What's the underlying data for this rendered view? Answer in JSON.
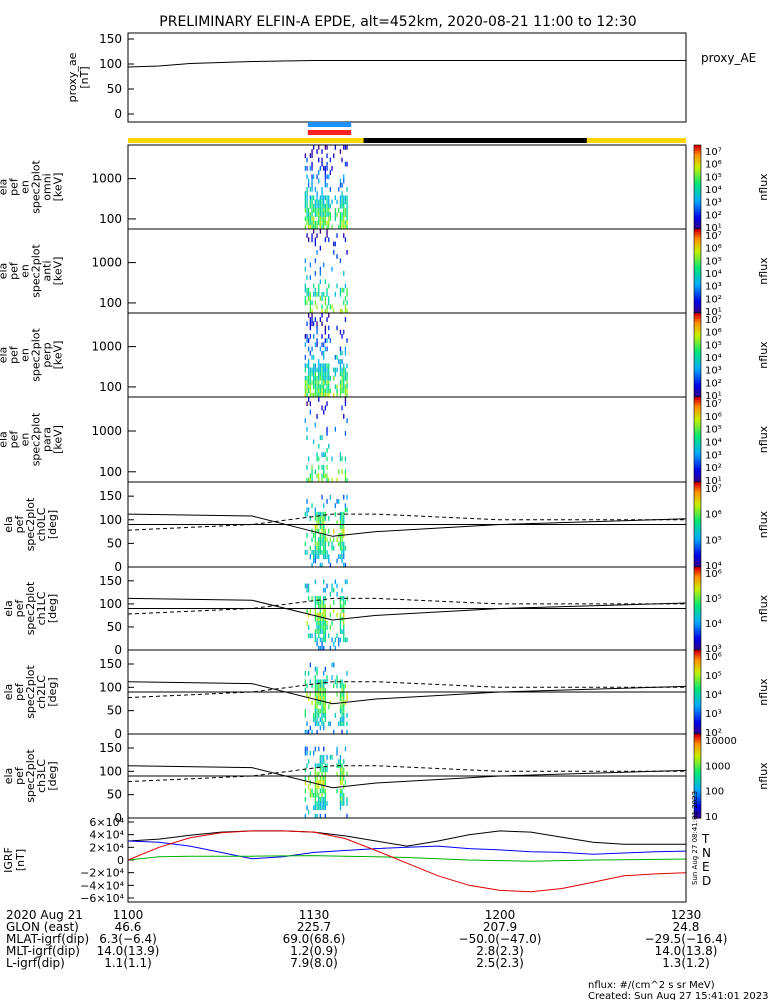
{
  "title": "PRELIMINARY ELFIN-A EPDE, alt=452km, 2020-08-21 11:00 to 12:30",
  "colors": {
    "sci_bar_blue": "#1e8fff",
    "sci_bar_red": "#ff2020",
    "sunlit_yellow": "#ffd700",
    "eclipse_black": "#000000",
    "grf_T": "#000000",
    "grf_N": "#0000ff",
    "grf_E": "#00b000",
    "grf_D": "#e00000"
  },
  "colorbar_ticks_energy": [
    "10⁷",
    "10⁶",
    "10⁵",
    "10⁴",
    "10³",
    "10²",
    "10¹"
  ],
  "chart_data": [
    {
      "type": "line",
      "name": "proxy_ae",
      "ylabel": [
        "proxy_ae",
        "[nT]"
      ],
      "legend": "proxy_AE",
      "ylim": [
        0,
        150
      ],
      "yticks": [
        "150",
        "100",
        "50",
        "0"
      ],
      "x": [
        0,
        5,
        10,
        15,
        20,
        25,
        30,
        35,
        40,
        45,
        50,
        55,
        60,
        65,
        70,
        75,
        80,
        85,
        90
      ],
      "values": [
        94,
        96,
        101,
        103,
        105,
        106,
        107,
        107,
        107,
        107,
        107,
        107,
        107,
        107,
        107,
        107,
        107,
        107,
        107
      ]
    },
    {
      "type": "heatmap",
      "name": "omni",
      "ylabel": [
        "ela",
        "pef",
        "en",
        "spec2plot",
        "omni",
        "[keV]"
      ],
      "yticks": [
        "1000",
        "100"
      ],
      "colorbar_label": "nflux",
      "colorbar_ticks": [
        "10⁷",
        "10⁶",
        "10⁵",
        "10⁴",
        "10³",
        "10²",
        "10¹"
      ]
    },
    {
      "type": "heatmap",
      "name": "anti",
      "ylabel": [
        "ela",
        "pef",
        "en",
        "spec2plot",
        "anti",
        "[keV]"
      ],
      "yticks": [
        "1000",
        "100"
      ],
      "colorbar_label": "nflux",
      "colorbar_ticks": [
        "10⁷",
        "10⁶",
        "10⁵",
        "10⁴",
        "10³",
        "10²",
        "10¹"
      ]
    },
    {
      "type": "heatmap",
      "name": "perp",
      "ylabel": [
        "ela",
        "pef",
        "en",
        "spec2plot",
        "perp",
        "[keV]"
      ],
      "yticks": [
        "1000",
        "100"
      ],
      "colorbar_label": "nflux",
      "colorbar_ticks": [
        "10⁷",
        "10⁶",
        "10⁵",
        "10⁴",
        "10³",
        "10²",
        "10¹"
      ]
    },
    {
      "type": "heatmap",
      "name": "para",
      "ylabel": [
        "ela",
        "pef",
        "en",
        "spec2plot",
        "para",
        "[keV]"
      ],
      "yticks": [
        "1000",
        "100"
      ],
      "colorbar_label": "nflux",
      "colorbar_ticks": [
        "10⁷",
        "10⁶",
        "10⁵",
        "10⁴",
        "10³",
        "10²",
        "10¹"
      ]
    },
    {
      "type": "heatmap",
      "name": "ch0LC",
      "ylabel": [
        "ela",
        "pef",
        "spec2plot",
        "ch0LC",
        "[deg]"
      ],
      "yticks": [
        "150",
        "100",
        "50",
        "0"
      ],
      "ylim": [
        0,
        180
      ],
      "colorbar_label": "nflux",
      "colorbar_ticks": [
        "10⁷",
        "10⁶",
        "10⁵",
        "10⁴"
      ]
    },
    {
      "type": "heatmap",
      "name": "ch1LC",
      "ylabel": [
        "ela",
        "pef",
        "spec2plot",
        "ch1LC",
        "[deg]"
      ],
      "yticks": [
        "150",
        "100",
        "50",
        "0"
      ],
      "ylim": [
        0,
        180
      ],
      "colorbar_label": "nflux",
      "colorbar_ticks": [
        "10⁶",
        "10⁵",
        "10⁴",
        "10³"
      ]
    },
    {
      "type": "heatmap",
      "name": "ch2LC",
      "ylabel": [
        "ela",
        "pef",
        "spec2plot",
        "ch2LC",
        "[deg]"
      ],
      "yticks": [
        "150",
        "100",
        "50",
        "0"
      ],
      "ylim": [
        0,
        180
      ],
      "colorbar_label": "nflux",
      "colorbar_ticks": [
        "10⁶",
        "10⁵",
        "10⁴",
        "10³",
        "10²"
      ]
    },
    {
      "type": "heatmap",
      "name": "ch3LC",
      "ylabel": [
        "ela",
        "pef",
        "spec2plot",
        "ch3LC",
        "[deg]"
      ],
      "yticks": [
        "150",
        "100",
        "50",
        "0"
      ],
      "ylim": [
        0,
        180
      ],
      "colorbar_label": "nflux",
      "colorbar_ticks": [
        "10000",
        "1000",
        "100",
        "10"
      ]
    },
    {
      "type": "line",
      "name": "GRF",
      "ylabel": [
        "IGRF",
        "[nT]"
      ],
      "ylim": [
        -60000,
        60000
      ],
      "yticks": [
        "6×10⁴",
        "4×10⁴",
        "2×10⁴",
        "0",
        "−2×10⁴",
        "−4×10⁴",
        "−6×10⁴"
      ],
      "x": [
        0,
        5,
        10,
        15,
        20,
        25,
        30,
        35,
        40,
        45,
        50,
        55,
        60,
        65,
        70,
        75,
        80,
        85,
        90
      ],
      "series": [
        {
          "name": "T",
          "values": [
            30000,
            33000,
            39000,
            44000,
            46000,
            46000,
            44000,
            38000,
            30000,
            22000,
            30000,
            40000,
            46000,
            44000,
            36000,
            28000,
            25000,
            25000,
            25000
          ]
        },
        {
          "name": "N",
          "values": [
            30000,
            28000,
            22000,
            12000,
            2000,
            5000,
            12000,
            15000,
            18000,
            20000,
            22000,
            18000,
            16000,
            13000,
            12000,
            9000,
            11000,
            13000,
            14000
          ]
        },
        {
          "name": "E",
          "values": [
            0,
            5000,
            6000,
            6000,
            6000,
            6500,
            7000,
            6000,
            5000,
            4000,
            2000,
            0,
            -1000,
            -2000,
            -1000,
            0,
            500,
            1000,
            1500
          ]
        },
        {
          "name": "D",
          "values": [
            0,
            20000,
            35000,
            43000,
            46000,
            46000,
            44000,
            34000,
            15000,
            -5000,
            -25000,
            -40000,
            -48000,
            -50000,
            -45000,
            -35000,
            -25000,
            -22000,
            -20000
          ]
        }
      ]
    }
  ],
  "ephemeris": {
    "labels": [
      "2020 Aug 21",
      "GLON (east)",
      "MLAT-igrf(dip)",
      "MLT-igrf(dip)",
      "L-igrf(dip)"
    ],
    "columns": [
      [
        "1100",
        "46.6",
        "6.3(−6.4)",
        "14.0(13.9)",
        "1.1(1.1)"
      ],
      [
        "1130",
        "225.7",
        "69.0(68.6)",
        "1.2(0.9)",
        "7.9(8.0)"
      ],
      [
        "1200",
        "207.9",
        "−50.0(−47.0)",
        "2.8(2.3)",
        "2.5(2.3)"
      ],
      [
        "1230",
        "24.8",
        "−29.5(−16.4)",
        "14.0(13.8)",
        "1.3(1.2)"
      ]
    ]
  },
  "footer": {
    "units": "nflux: #/(cm^2 s sr MeV)",
    "created": "Created: Sun Aug 27 15:41:01 2023",
    "vertical_stamp": "Sun Aug 27 08:41:01 2023"
  }
}
